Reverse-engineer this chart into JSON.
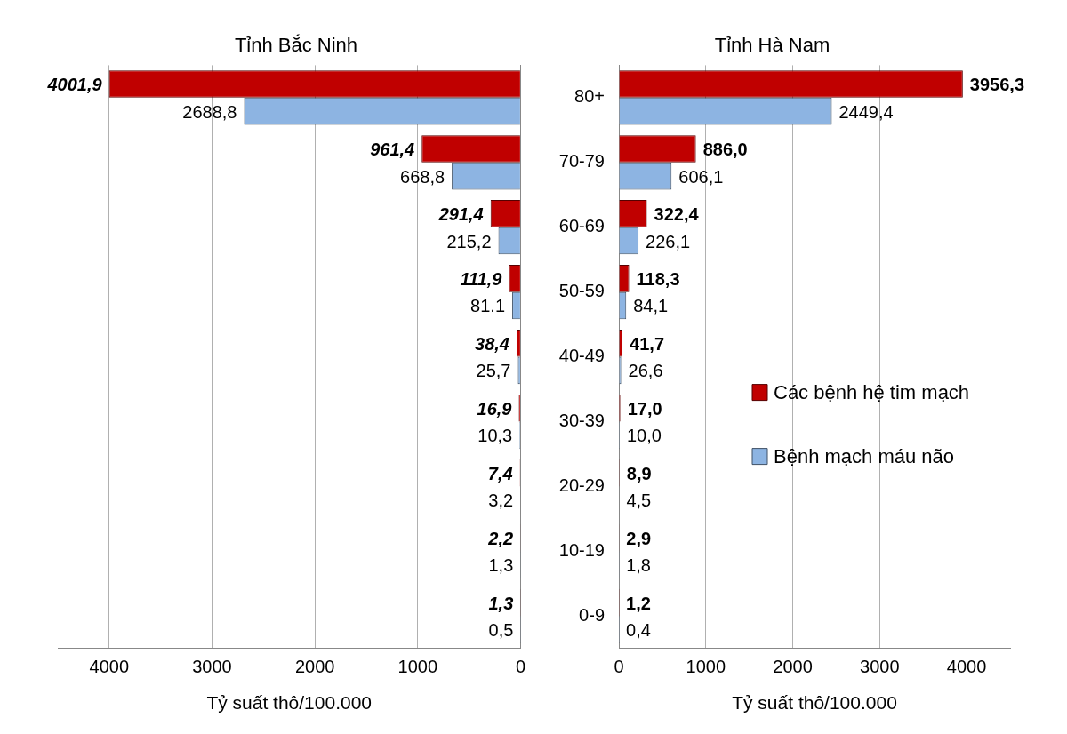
{
  "chart_data": [
    {
      "type": "bar",
      "orientation": "horizontal",
      "title": "Tỉnh Bắc Ninh",
      "xlabel": "Tỷ suất thô/100.000",
      "categories": [
        null,
        null,
        null,
        null,
        null,
        null,
        null,
        null,
        null
      ],
      "series": [
        {
          "color": "#c00000",
          "values": [
            4001.9,
            961.4,
            291.4,
            111.9,
            38.4,
            16.9,
            7.4,
            2.2,
            1.3
          ],
          "value_labels": [
            "4001,9",
            "961,4",
            "291,4",
            "111,9",
            "38,4",
            "16,9",
            "7,4",
            "2,2",
            "1,3"
          ]
        },
        {
          "color": "#8db4e2",
          "values": [
            2688.8,
            668.8,
            215.2,
            81.1,
            25.7,
            10.3,
            3.2,
            1.3,
            0.5
          ],
          "value_labels": [
            "2688,8",
            "668,8",
            "215,2",
            "81.1",
            "25,7",
            "10,3",
            "3,2",
            "1,3",
            "0,5"
          ]
        }
      ],
      "xlim": [
        4500,
        0
      ],
      "xticks": [
        4000,
        3000,
        2000,
        1000,
        0
      ],
      "grid": "x",
      "legend": false,
      "tick_labels": "x"
    },
    {
      "type": "bar",
      "orientation": "horizontal",
      "title": "Tỉnh Hà Nam",
      "xlabel": "Tỷ suất thô/100.000",
      "categories": [
        "80+",
        "70-79",
        "60-69",
        "50-59",
        "40-49",
        "30-39",
        "20-29",
        "10-19",
        "0-9"
      ],
      "series": [
        {
          "name": "Các bệnh hệ tim mạch",
          "color": "#c00000",
          "values": [
            3956.3,
            886.0,
            322.4,
            118.3,
            41.7,
            17.0,
            8.9,
            2.9,
            1.2
          ],
          "value_labels": [
            "3956,3",
            "886,0",
            "322,4",
            "118,3",
            "41,7",
            "17,0",
            "8,9",
            "2,9",
            "1,2"
          ]
        },
        {
          "name": "Bệnh mạch máu não",
          "color": "#8db4e2",
          "values": [
            2449.4,
            606.1,
            226.1,
            84.1,
            26.6,
            10.0,
            4.5,
            1.8,
            0.4
          ],
          "value_labels": [
            "2449,4",
            "606,1",
            "226,1",
            "84,1",
            "26,6",
            "10,0",
            "4,5",
            "1,8",
            "0,4"
          ]
        }
      ],
      "xlim": [
        0,
        4500
      ],
      "xticks": [
        0,
        1000,
        2000,
        3000,
        4000
      ],
      "grid": "x",
      "legend": "right"
    }
  ]
}
